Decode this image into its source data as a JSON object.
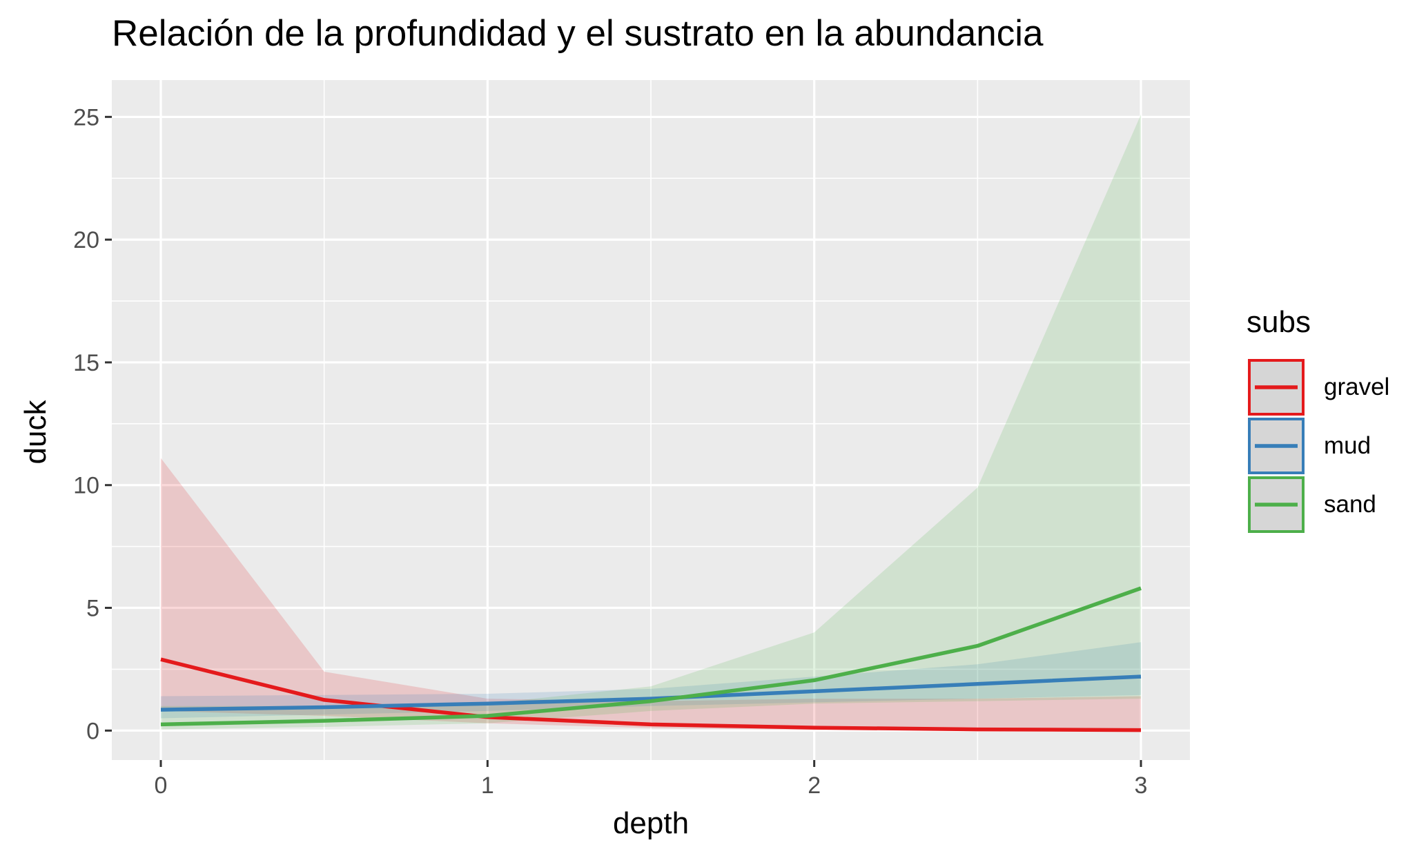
{
  "chart_data": {
    "type": "line",
    "title": "Relación de la profundidad y el sustrato en la abundancia",
    "xlabel": "depth",
    "ylabel": "duck",
    "xlim": [
      -0.15,
      3.15
    ],
    "ylim": [
      -1.2,
      26.5
    ],
    "x_ticks": [
      0,
      1,
      2,
      3
    ],
    "y_ticks": [
      0,
      5,
      10,
      15,
      20,
      25
    ],
    "grid": true,
    "x": [
      0,
      0.5,
      1,
      1.5,
      2,
      2.5,
      3
    ],
    "legend": {
      "title": "subs",
      "placement": "right"
    },
    "series": [
      {
        "name": "gravel",
        "color": "#E41A1C",
        "values": [
          2.9,
          1.25,
          0.55,
          0.25,
          0.12,
          0.05,
          0.02
        ],
        "lower": [
          0.8,
          0.6,
          0.3,
          0.1,
          0.03,
          0.01,
          0.0
        ],
        "upper": [
          11.1,
          2.4,
          1.3,
          1.2,
          1.3,
          1.3,
          1.4
        ]
      },
      {
        "name": "mud",
        "color": "#377EB8",
        "values": [
          0.85,
          0.95,
          1.1,
          1.3,
          1.6,
          1.9,
          2.2
        ],
        "lower": [
          0.5,
          0.65,
          0.8,
          1.0,
          1.15,
          1.3,
          1.45
        ],
        "upper": [
          1.4,
          1.45,
          1.5,
          1.7,
          2.2,
          2.7,
          3.6
        ]
      },
      {
        "name": "sand",
        "color": "#4DAF4A",
        "values": [
          0.25,
          0.4,
          0.6,
          1.2,
          2.05,
          3.45,
          5.8
        ],
        "lower": [
          0.05,
          0.15,
          0.3,
          0.8,
          1.1,
          1.2,
          1.3
        ],
        "upper": [
          1.0,
          1.0,
          1.1,
          1.8,
          4.0,
          9.9,
          25.1
        ]
      }
    ]
  }
}
